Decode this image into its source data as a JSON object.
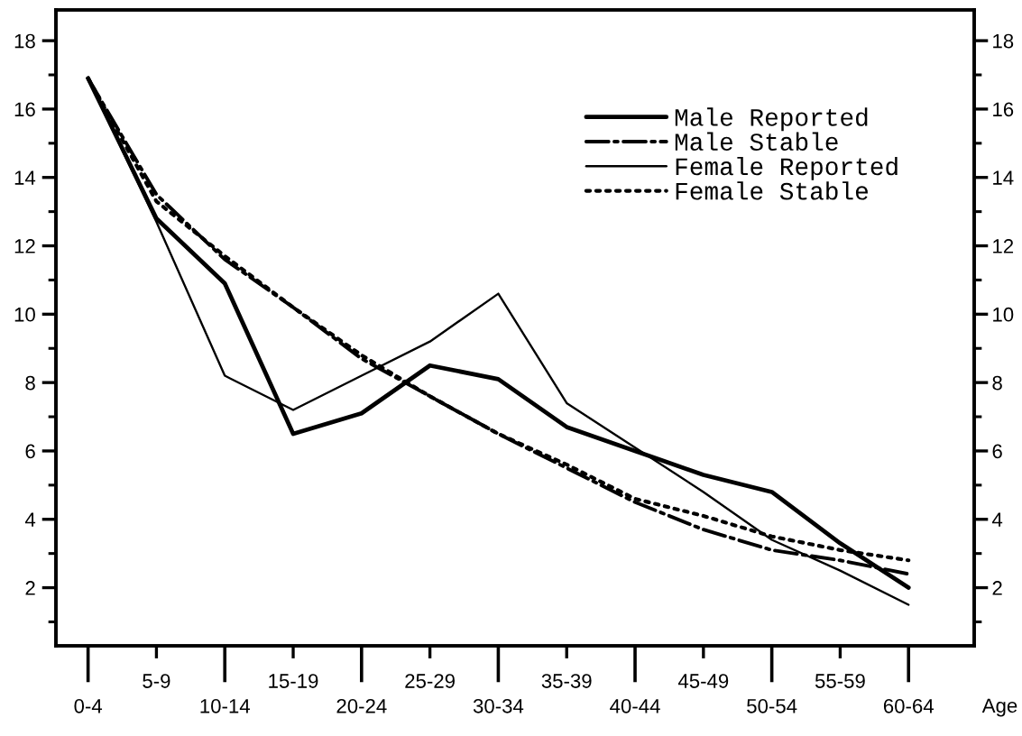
{
  "chart_data": {
    "type": "line",
    "xlabel": "Age",
    "categories": [
      "0-4",
      "5-9",
      "10-14",
      "15-19",
      "20-24",
      "25-29",
      "30-34",
      "35-39",
      "40-44",
      "45-49",
      "50-54",
      "55-59",
      "60-64"
    ],
    "ylim": [
      0.3,
      18.9
    ],
    "yticks": [
      {
        "value": 1,
        "label": null
      },
      2,
      {
        "value": 3,
        "label": null
      },
      4,
      {
        "value": 5,
        "label": null
      },
      6,
      {
        "value": 7,
        "label": null
      },
      8,
      {
        "value": 9,
        "label": null
      },
      10,
      {
        "value": 11,
        "label": null
      },
      12,
      {
        "value": 13,
        "label": null
      },
      14,
      {
        "value": 15,
        "label": null
      },
      16,
      {
        "value": 17,
        "label": null
      },
      18
    ],
    "y2lim": [
      0.3,
      18.9
    ],
    "y2ticks": [
      {
        "value": 1,
        "label": null
      },
      2,
      {
        "value": 3,
        "label": null
      },
      4,
      {
        "value": 5,
        "label": null
      },
      6,
      {
        "value": 7,
        "label": null
      },
      8,
      {
        "value": 9,
        "label": null
      },
      10,
      {
        "value": 11,
        "label": null
      },
      12,
      {
        "value": 13,
        "label": null
      },
      14,
      {
        "value": 15,
        "label": null
      },
      16,
      {
        "value": 17,
        "label": null
      },
      18
    ],
    "legend": "top right",
    "series": [
      {
        "name": "Male Reported",
        "color": "#000000",
        "line_style": "solid",
        "values": [
          16.9,
          12.8,
          10.9,
          6.5,
          7.1,
          8.5,
          8.1,
          6.7,
          6.0,
          5.3,
          4.8,
          3.3,
          2.0
        ]
      },
      {
        "name": "Male Stable",
        "color": "#000000",
        "line_style": "dashdot",
        "values": [
          16.9,
          13.5,
          11.6,
          10.2,
          8.7,
          7.6,
          6.5,
          5.5,
          4.5,
          3.7,
          3.1,
          2.8,
          2.4
        ]
      },
      {
        "name": "Female Reported",
        "color": "#000000",
        "line_style": "solid",
        "values": [
          16.9,
          12.7,
          8.2,
          7.2,
          8.2,
          9.2,
          10.6,
          7.4,
          6.1,
          4.8,
          3.4,
          2.5,
          1.5
        ]
      },
      {
        "name": "Female Stable",
        "color": "#000000",
        "line_style": "dotted",
        "values": [
          16.9,
          13.3,
          11.7,
          10.2,
          8.8,
          7.6,
          6.5,
          5.6,
          4.6,
          4.1,
          3.5,
          3.1,
          2.8
        ]
      }
    ]
  }
}
